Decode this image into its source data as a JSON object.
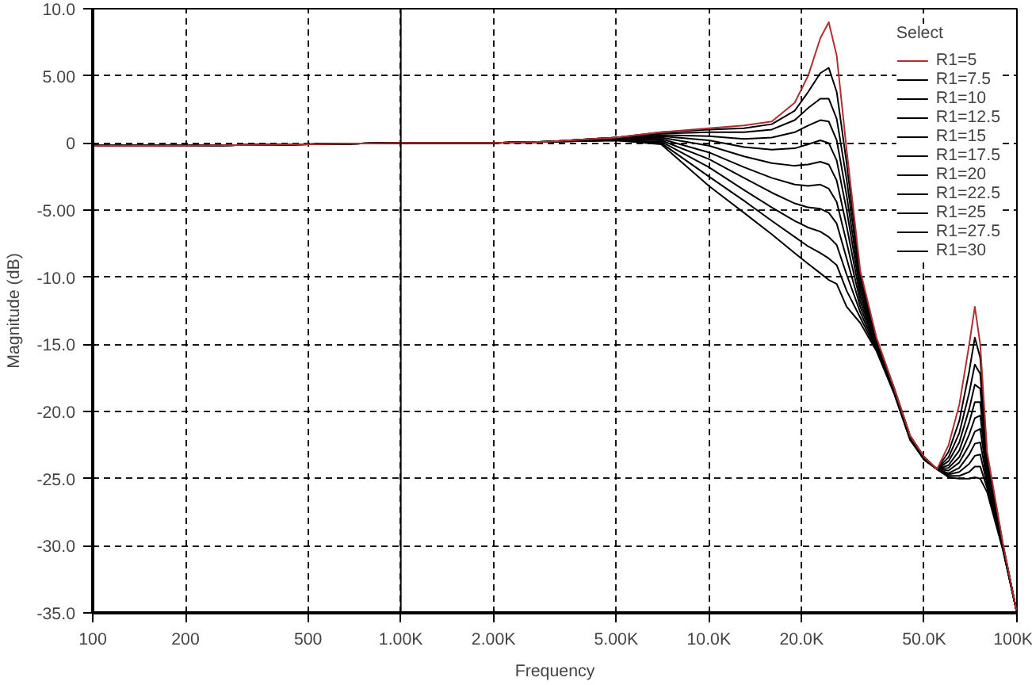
{
  "chart_data": {
    "type": "line",
    "xlabel": "Frequency",
    "ylabel": "Magnitude (dB)",
    "legend_title": "Select",
    "log": "x",
    "grid": true,
    "legend": "top right",
    "x": [
      100,
      200,
      500,
      1000,
      2000,
      3000,
      5000,
      7000,
      10000,
      13000,
      16000,
      19000,
      21000,
      23000,
      24500,
      26000,
      28000,
      31000,
      35000,
      40000,
      45000,
      50000,
      55000,
      60000,
      65000,
      70000,
      73000,
      76000,
      80000,
      90000,
      100000
    ],
    "xlim": [
      100,
      100000
    ],
    "xticks": [
      100,
      200,
      500,
      {
        "value": 1000,
        "label": "1.00K"
      },
      {
        "value": 2000,
        "label": "2.00K"
      },
      {
        "value": 5000,
        "label": "5.00K"
      },
      {
        "value": 10000,
        "label": "10.0K"
      },
      {
        "value": 20000,
        "label": "20.0K"
      },
      {
        "value": 50000,
        "label": "50.0K"
      },
      {
        "value": 100000,
        "label": "100K"
      }
    ],
    "ylim": [
      -35,
      10
    ],
    "yticks": [
      {
        "value": 10,
        "label": "10.0"
      },
      {
        "value": 5,
        "label": "5.00"
      },
      0,
      {
        "value": -5,
        "label": "-5.00"
      },
      {
        "value": -10,
        "label": "-10.0"
      },
      {
        "value": -15,
        "label": "-15.0"
      },
      {
        "value": -20,
        "label": "-20.0"
      },
      {
        "value": -25,
        "label": "-25.0"
      },
      {
        "value": -30,
        "label": "-30.0"
      },
      {
        "value": -35,
        "label": "-35.0"
      }
    ],
    "ref_lines": [
      {
        "axis": "x",
        "value": 1000,
        "color": "#000000",
        "line_style": "solid"
      }
    ],
    "series": [
      {
        "name": "R1=5",
        "color": "#b03030",
        "values": [
          -0.2,
          -0.2,
          -0.1,
          0,
          0,
          0.1,
          0.4,
          0.8,
          1.1,
          1.3,
          1.6,
          3.0,
          5.0,
          7.8,
          9.0,
          6.5,
          -0.5,
          -9.5,
          -14.5,
          -18.3,
          -21.8,
          -23.4,
          -24.3,
          -22.5,
          -19.5,
          -15,
          -12.2,
          -15,
          -23,
          -29.8,
          -35
        ]
      },
      {
        "name": "R1=7.5",
        "color": "#000000",
        "values": [
          -0.2,
          -0.2,
          -0.1,
          0,
          0,
          0.1,
          0.4,
          0.8,
          1.0,
          1.1,
          1.4,
          2.4,
          3.8,
          5.2,
          5.6,
          3.8,
          -1.5,
          -9.8,
          -14.6,
          -18.3,
          -21.8,
          -23.4,
          -24.3,
          -23.0,
          -20.7,
          -17,
          -14.5,
          -16,
          -23.3,
          -29.9,
          -35
        ]
      },
      {
        "name": "R1=10",
        "color": "#000000",
        "values": [
          -0.2,
          -0.2,
          -0.1,
          0,
          0,
          0.1,
          0.4,
          0.7,
          0.8,
          0.8,
          1.0,
          1.7,
          2.6,
          3.3,
          3.3,
          1.8,
          -2.7,
          -10.2,
          -14.7,
          -18.4,
          -21.9,
          -23.4,
          -24.3,
          -23.4,
          -21.6,
          -18.6,
          -16.5,
          -17.2,
          -23.6,
          -29.9,
          -35
        ]
      },
      {
        "name": "R1=12.5",
        "color": "#000000",
        "values": [
          -0.2,
          -0.2,
          -0.1,
          0,
          0,
          0.1,
          0.4,
          0.6,
          0.5,
          0.3,
          0.4,
          0.8,
          1.3,
          1.7,
          1.6,
          0.2,
          -3.9,
          -10.6,
          -14.8,
          -18.4,
          -21.9,
          -23.5,
          -24.3,
          -23.7,
          -22.3,
          -19.8,
          -18.0,
          -18.3,
          -23.9,
          -30.0,
          -35
        ]
      },
      {
        "name": "R1=15",
        "color": "#000000",
        "values": [
          -0.2,
          -0.2,
          -0.1,
          0,
          0,
          0.1,
          0.3,
          0.5,
          0.2,
          -0.3,
          -0.5,
          -0.4,
          -0.1,
          0.2,
          0.0,
          -1.3,
          -5.0,
          -11.0,
          -14.9,
          -18.5,
          -21.9,
          -23.5,
          -24.3,
          -24.0,
          -22.9,
          -20.8,
          -19.3,
          -19.3,
          -24.2,
          -30.0,
          -35
        ]
      },
      {
        "name": "R1=17.5",
        "color": "#000000",
        "values": [
          -0.2,
          -0.2,
          -0.1,
          0,
          0,
          0.1,
          0.3,
          0.4,
          -0.2,
          -1.0,
          -1.5,
          -1.7,
          -1.6,
          -1.4,
          -1.6,
          -2.8,
          -6.2,
          -11.4,
          -15.0,
          -18.5,
          -22.0,
          -23.5,
          -24.3,
          -24.2,
          -23.4,
          -21.7,
          -20.5,
          -20.3,
          -24.5,
          -30.0,
          -35
        ]
      },
      {
        "name": "R1=20",
        "color": "#000000",
        "values": [
          -0.2,
          -0.2,
          -0.1,
          0,
          0,
          0.1,
          0.3,
          0.3,
          -0.7,
          -1.8,
          -2.6,
          -3.1,
          -3.2,
          -3.1,
          -3.4,
          -4.4,
          -7.4,
          -11.8,
          -15.1,
          -18.5,
          -22.0,
          -23.5,
          -24.3,
          -24.4,
          -23.8,
          -22.5,
          -21.5,
          -21.3,
          -24.8,
          -30.1,
          -35
        ]
      },
      {
        "name": "R1=22.5",
        "color": "#000000",
        "values": [
          -0.2,
          -0.2,
          -0.1,
          0,
          0,
          0.1,
          0.3,
          0.2,
          -1.2,
          -2.6,
          -3.7,
          -4.5,
          -4.8,
          -4.9,
          -5.2,
          -6.0,
          -8.6,
          -12.2,
          -15.2,
          -18.6,
          -22.0,
          -23.5,
          -24.3,
          -24.6,
          -24.2,
          -23.2,
          -22.4,
          -22.3,
          -25.1,
          -30.1,
          -35
        ]
      },
      {
        "name": "R1=25",
        "color": "#000000",
        "values": [
          -0.2,
          -0.2,
          -0.1,
          0,
          0,
          0.1,
          0.2,
          0.1,
          -1.8,
          -3.5,
          -4.8,
          -5.8,
          -6.3,
          -6.6,
          -7.0,
          -7.6,
          -9.8,
          -12.6,
          -15.3,
          -18.6,
          -22.0,
          -23.6,
          -24.3,
          -24.7,
          -24.5,
          -23.9,
          -23.3,
          -23.2,
          -25.4,
          -30.2,
          -35
        ]
      },
      {
        "name": "R1=27.5",
        "color": "#000000",
        "values": [
          -0.2,
          -0.2,
          -0.1,
          0,
          0,
          0.1,
          0.2,
          0.0,
          -2.5,
          -4.3,
          -5.8,
          -7.0,
          -7.7,
          -8.2,
          -8.6,
          -9.1,
          -11.0,
          -13.0,
          -15.4,
          -18.7,
          -22.1,
          -23.6,
          -24.3,
          -24.8,
          -24.8,
          -24.5,
          -24.1,
          -24.1,
          -25.7,
          -30.2,
          -35
        ]
      },
      {
        "name": "R1=30",
        "color": "#000000",
        "values": [
          -0.2,
          -0.2,
          -0.1,
          0,
          0,
          0.1,
          0.2,
          -0.1,
          -3.2,
          -5.2,
          -6.8,
          -8.2,
          -9.0,
          -9.7,
          -10.2,
          -10.5,
          -12.2,
          -13.4,
          -15.5,
          -18.7,
          -22.1,
          -23.6,
          -24.3,
          -24.9,
          -25.0,
          -25.0,
          -24.9,
          -25.0,
          -26.0,
          -30.3,
          -35
        ]
      }
    ]
  }
}
